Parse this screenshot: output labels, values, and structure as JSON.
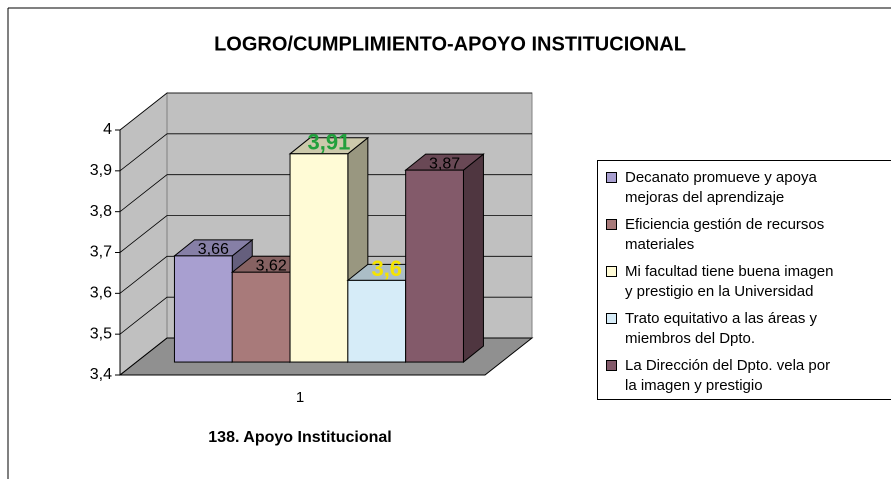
{
  "chart_data": {
    "type": "bar3d",
    "title": "LOGRO/CUMPLIMIENTO-APOYO INSTITUCIONAL",
    "x_label": "138. Apoyo Institucional",
    "categories": [
      "1"
    ],
    "series": [
      {
        "name": "Decanato promueve y apoya\nmejoras del aprendizaje",
        "color": "#a89fd0",
        "values": [
          3.66
        ],
        "value_labels": [
          "3,66"
        ]
      },
      {
        "name": "Eficiencia gestión de recursos\nmateriales",
        "color": "#a87a7a",
        "values": [
          3.62
        ],
        "value_labels": [
          "3,62"
        ]
      },
      {
        "name": "Mi facultad tiene buena imagen\ny prestigio en la Universidad",
        "color": "#fffbd6",
        "values": [
          3.91
        ],
        "value_labels": [
          "3,91"
        ],
        "label_color": "#22a03c"
      },
      {
        "name": "Trato equitativo a las áreas y\nmiembros del Dpto.",
        "color": "#d6ecf8",
        "values": [
          3.6
        ],
        "value_labels": [
          "3,6"
        ],
        "label_color": "#f5e400"
      },
      {
        "name": "La Dirección del Dpto. vela por\nla imagen y prestigio",
        "color": "#835a6a",
        "values": [
          3.87
        ],
        "value_labels": [
          "3,87"
        ]
      }
    ],
    "ylim": [
      3.4,
      4
    ],
    "yticks": [
      {
        "value": 3.4,
        "label": "3,4"
      },
      {
        "value": 3.5,
        "label": "3,5"
      },
      {
        "value": 3.6,
        "label": "3,6"
      },
      {
        "value": 3.7,
        "label": "3,7"
      },
      {
        "value": 3.8,
        "label": "3,8"
      },
      {
        "value": 3.9,
        "label": "3,9"
      },
      4
    ],
    "grid": true,
    "legend": "right"
  }
}
